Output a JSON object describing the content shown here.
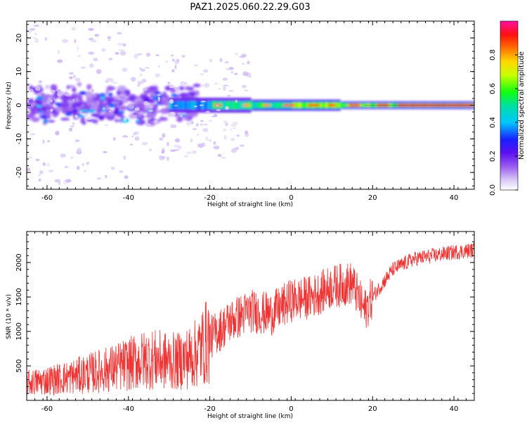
{
  "title": "PAZ1.2025.060.22.29.G03",
  "chart_data": [
    {
      "type": "heatmap",
      "xlabel": "Height of straight line (km)",
      "ylabel": "Frequency (Hz)",
      "xlim": [
        -65,
        45
      ],
      "ylim": [
        -25,
        25
      ],
      "xticks": [
        -60,
        -40,
        -20,
        0,
        20,
        40
      ],
      "yticks": [
        -20,
        -10,
        0,
        10,
        20
      ],
      "colormap_description": "normalized spectral amplitude from 0 (white/lavender) through purple, blue, cyan, green, yellow, orange to red/magenta at 1",
      "features": [
        {
          "x_range": [
            -65,
            -25
          ],
          "frequency_center": 0,
          "frequency_spread": 6,
          "amplitude": 0.2
        },
        {
          "x_range": [
            -30,
            10
          ],
          "frequency_center": 0,
          "frequency_spread": 2,
          "amplitude": 0.6
        },
        {
          "x_range": [
            10,
            45
          ],
          "frequency_center": 0,
          "frequency_spread": 0.5,
          "amplitude": 0.95
        }
      ]
    },
    {
      "type": "line",
      "xlabel": "Height of straight line (km)",
      "ylabel": "SNR (10 * v/v)",
      "xlim": [
        -65,
        45
      ],
      "ylim": [
        0,
        2450
      ],
      "xticks": [
        -60,
        -40,
        -20,
        0,
        20,
        40
      ],
      "yticks": [
        500,
        1000,
        1500,
        2000
      ],
      "line_color": "#ef3232",
      "trend": {
        "x": [
          -65,
          -55,
          -45,
          -35,
          -28,
          -24,
          -20,
          -15,
          -10,
          -5,
          0,
          5,
          10,
          15,
          18,
          20,
          25,
          30,
          35,
          40,
          45
        ],
        "y": [
          250,
          330,
          450,
          600,
          560,
          650,
          900,
          1150,
          1300,
          1250,
          1450,
          1500,
          1650,
          1700,
          1300,
          1500,
          1900,
          2050,
          2100,
          2150,
          2180
        ]
      }
    }
  ],
  "colorbar": {
    "label": "Normalized spectral amplitude",
    "range": [
      0,
      1
    ],
    "ticks": [
      "0.0",
      "0.2",
      "0.4",
      "0.6",
      "0.8"
    ]
  }
}
